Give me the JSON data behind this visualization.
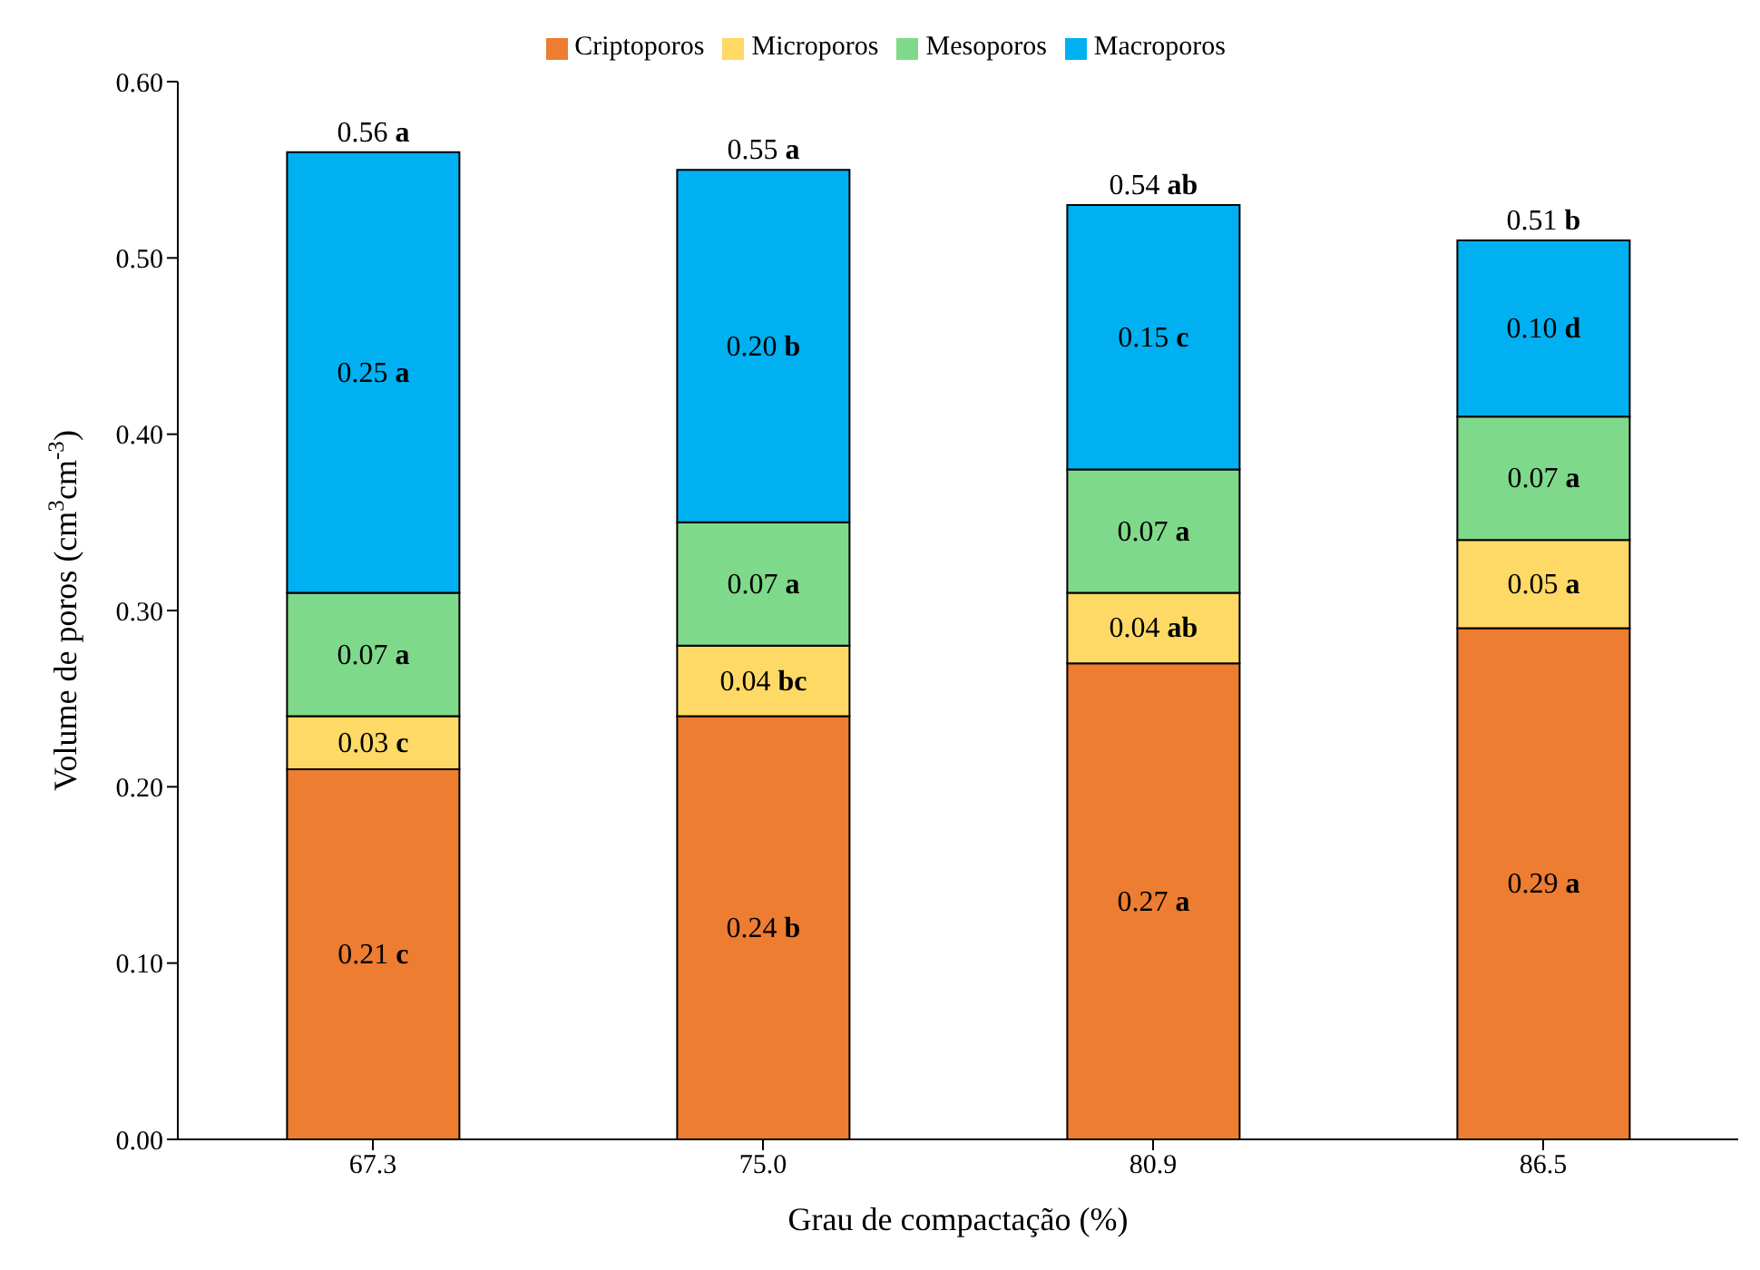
{
  "chart_data": {
    "type": "bar",
    "stacked": true,
    "xlabel": "Grau de compactação (%)",
    "ylabel": "Volume de poros (cm$^{3}$cm$^{-3}$)",
    "categories": [
      "67.3",
      "75.0",
      "80.9",
      "86.5"
    ],
    "series": [
      {
        "name": "Criptoporos",
        "color": "#ed7d31",
        "values": [
          0.21,
          0.24,
          0.27,
          0.29
        ],
        "value_labels": [
          "0.21 c",
          "0.24 b",
          "0.27 a",
          "0.29 a"
        ]
      },
      {
        "name": "Microporos",
        "color": "#ffd966",
        "values": [
          0.03,
          0.04,
          0.04,
          0.05
        ],
        "value_labels": [
          "0.03 c",
          "0.04 bc",
          "0.04 ab",
          "0.05 a"
        ]
      },
      {
        "name": "Mesoporos",
        "color": "#7fd98a",
        "values": [
          0.07,
          0.07,
          0.07,
          0.07
        ],
        "value_labels": [
          "0.07 a",
          "0.07 a",
          "0.07 a",
          "0.07 a"
        ]
      },
      {
        "name": "Macroporos",
        "color": "#00b0f0",
        "values": [
          0.25,
          0.2,
          0.15,
          0.1
        ],
        "value_labels": [
          "0.25 a",
          "0.20 b",
          "0.15 c",
          "0.10 d"
        ]
      }
    ],
    "totals": [
      "0.56 a",
      "0.55 a",
      "0.54 ab",
      "0.51 b"
    ],
    "ylim": [
      0,
      0.6
    ],
    "yticks": [
      {
        "value": 0,
        "label": "0.00"
      },
      {
        "value": 0.1,
        "label": "0.10"
      },
      {
        "value": 0.2,
        "label": "0.20"
      },
      {
        "value": 0.3,
        "label": "0.30"
      },
      {
        "value": 0.4,
        "label": "0.40"
      },
      {
        "value": 0.5,
        "label": "0.50"
      },
      {
        "value": 0.6,
        "label": "0.60"
      }
    ],
    "grid": false,
    "legend": "top"
  }
}
